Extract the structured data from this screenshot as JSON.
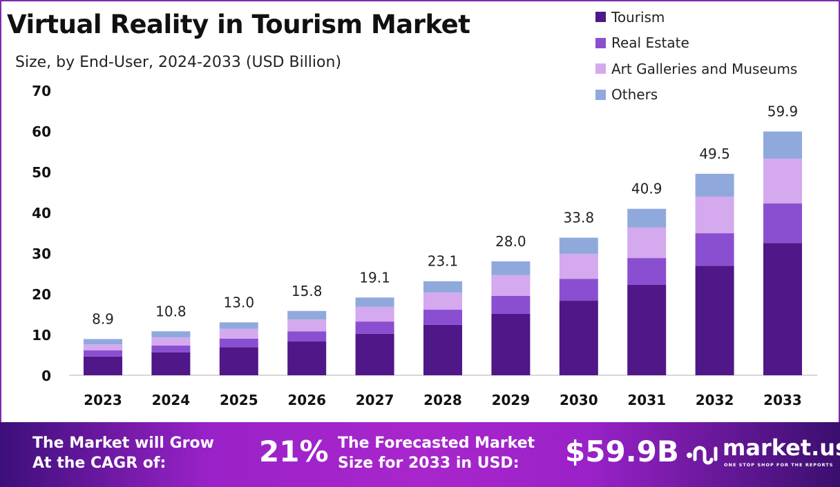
{
  "chart_data": {
    "type": "bar",
    "stacked": true,
    "title": "Virtual Reality in Tourism Market",
    "subtitle": "Size, by End-User, 2024-2033 (USD Billion)",
    "categories": [
      "2023",
      "2024",
      "2025",
      "2026",
      "2027",
      "2028",
      "2029",
      "2030",
      "2031",
      "2032",
      "2033"
    ],
    "totals": [
      "8.9",
      "10.8",
      "13.0",
      "15.8",
      "19.1",
      "23.1",
      "28.0",
      "33.8",
      "40.9",
      "49.5",
      "59.9"
    ],
    "series": [
      {
        "name": "Tourism",
        "color": "#4f1787",
        "values": [
          4.6,
          5.6,
          6.9,
          8.3,
          10.2,
          12.4,
          15.1,
          18.3,
          22.2,
          26.9,
          32.5
        ]
      },
      {
        "name": "Real Estate",
        "color": "#8a4fd0",
        "values": [
          1.5,
          1.7,
          2.1,
          2.5,
          3.0,
          3.7,
          4.4,
          5.4,
          6.6,
          8.0,
          9.7
        ]
      },
      {
        "name": "Art Galleries and Museums",
        "color": "#d4a9ee",
        "values": [
          1.5,
          2.0,
          2.4,
          2.9,
          3.6,
          4.2,
          5.1,
          6.1,
          7.5,
          9.0,
          11.0
        ]
      },
      {
        "name": "Others",
        "color": "#90a9dd",
        "values": [
          1.3,
          1.5,
          1.6,
          2.1,
          2.3,
          2.8,
          3.4,
          4.0,
          4.6,
          5.6,
          6.7
        ]
      }
    ],
    "ylim": [
      0,
      70
    ],
    "yticks": [
      "0",
      "10",
      "20",
      "30",
      "40",
      "50",
      "60",
      "70"
    ],
    "grid": false,
    "legend": "top-right"
  },
  "banner": {
    "cagr_text": "The Market will Grow At the CAGR of:",
    "cagr_line1": "The Market will Grow",
    "cagr_line2": "At the CAGR of:",
    "cagr_value": "21%",
    "forecast_line1": "The Forecasted Market",
    "forecast_line2": "Size for 2033 in USD:",
    "forecast_value": "$59.9B",
    "brand": "market.us",
    "tagline": "ONE STOP SHOP FOR THE REPORTS"
  }
}
